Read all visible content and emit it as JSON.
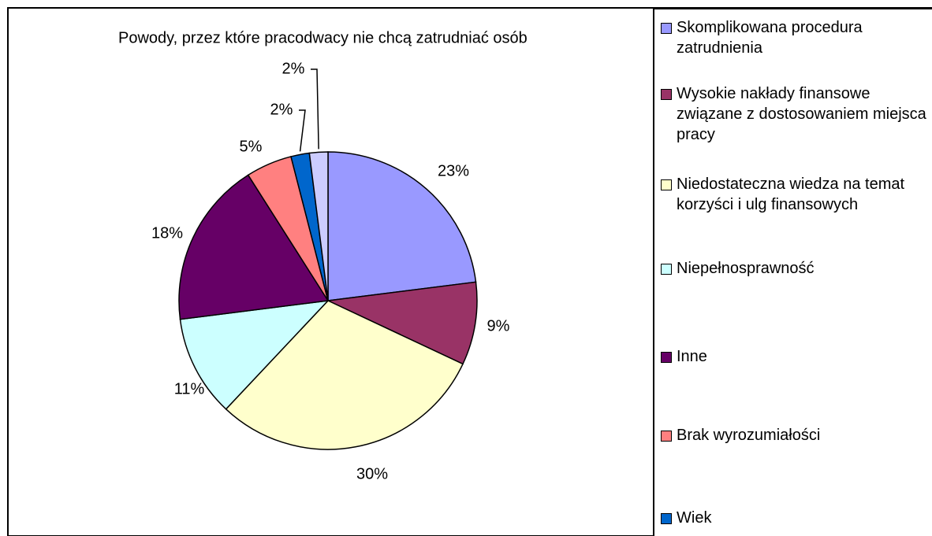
{
  "chart_data": {
    "type": "pie",
    "title": "Powody, przez które pracodwacy nie chcą zatrudniać osób",
    "categories": [
      "Skomplikowana procedura zatrudnienia",
      "Wysokie nakłady finansowe związane z dostosowaniem miejsca pracy",
      "Niedostateczna wiedza na temat korzyści i ulg finansowych",
      "Niepełnosprawność",
      "Inne",
      "Brak wyrozumiałości",
      "Wiek",
      null
    ],
    "values": [
      23,
      9,
      30,
      11,
      18,
      5,
      2,
      2
    ],
    "value_labels": [
      "23%",
      "9%",
      "30%",
      "11%",
      "18%",
      "5%",
      "2%",
      "2%"
    ],
    "colors": [
      "#9999ff",
      "#993366",
      "#ffffcc",
      "#ccffff",
      "#660066",
      "#ff8080",
      "#0066cc",
      "#ccccff"
    ],
    "legend": "right"
  }
}
